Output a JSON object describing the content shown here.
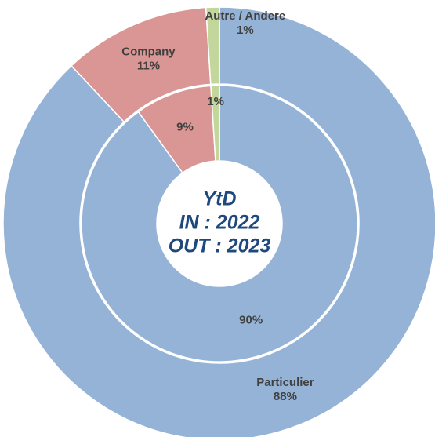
{
  "chart_data": {
    "type": "donut",
    "categories": [
      "Particulier",
      "Company",
      "Autre / Andere"
    ],
    "colors": [
      "#95b3d7",
      "#d99694",
      "#c3d69b"
    ],
    "series": [
      {
        "values": [
          88,
          11,
          1
        ],
        "value_labels": [
          "88%",
          "11%",
          "1%"
        ]
      },
      {
        "values": [
          90,
          9,
          1
        ],
        "value_labels": [
          "90%",
          "9%",
          "1%"
        ]
      }
    ],
    "center_text": [
      "YtD",
      "IN : 2022",
      "OUT : 2023"
    ]
  }
}
